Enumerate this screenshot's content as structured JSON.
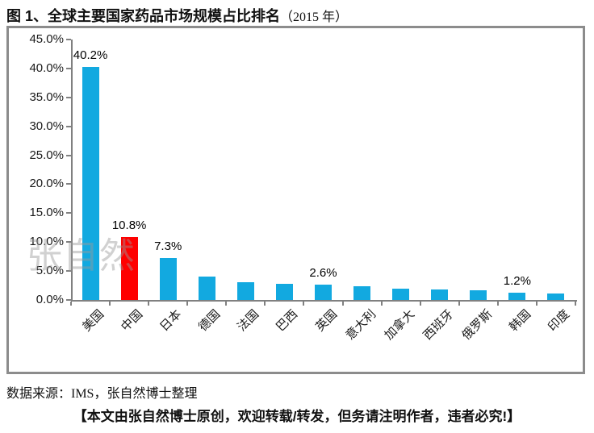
{
  "header": {
    "title": "图 1、全球主要国家药品市场规模占比排名",
    "title_suffix": "（2015 年）"
  },
  "chart_data": {
    "type": "bar",
    "title": "全球主要国家药品市场规模占比排名（2015 年）",
    "categories": [
      "美国",
      "中国",
      "日本",
      "德国",
      "法国",
      "巴西",
      "英国",
      "意大利",
      "加拿大",
      "西班牙",
      "俄罗斯",
      "韩国",
      "印度"
    ],
    "values": [
      40.2,
      10.8,
      7.3,
      4.0,
      3.1,
      2.8,
      2.6,
      2.3,
      1.9,
      1.8,
      1.7,
      1.2,
      1.1
    ],
    "data_labels": [
      "40.2%",
      "10.8%",
      "7.3%",
      "",
      "",
      "",
      "2.6%",
      "",
      "",
      "",
      "",
      "1.2%",
      ""
    ],
    "highlight_index": 1,
    "bar_color": "#12A9E0",
    "highlight_color": "#FE0000",
    "ylim": [
      0,
      45
    ],
    "ytick_step": 5,
    "ytick_labels": [
      "0.0%",
      "5.0%",
      "10.0%",
      "15.0%",
      "20.0%",
      "25.0%",
      "30.0%",
      "35.0%",
      "40.0%",
      "45.0%"
    ],
    "xlabel": "",
    "ylabel": "",
    "grid": false,
    "legend": "none",
    "axis_color": "#808080"
  },
  "watermark": "张自然",
  "source_note": "数据来源：IMS，张自然博士整理",
  "footer": "【本文由张自然博士原创，欢迎转载/转发，但务请注明作者，违者必究!】"
}
